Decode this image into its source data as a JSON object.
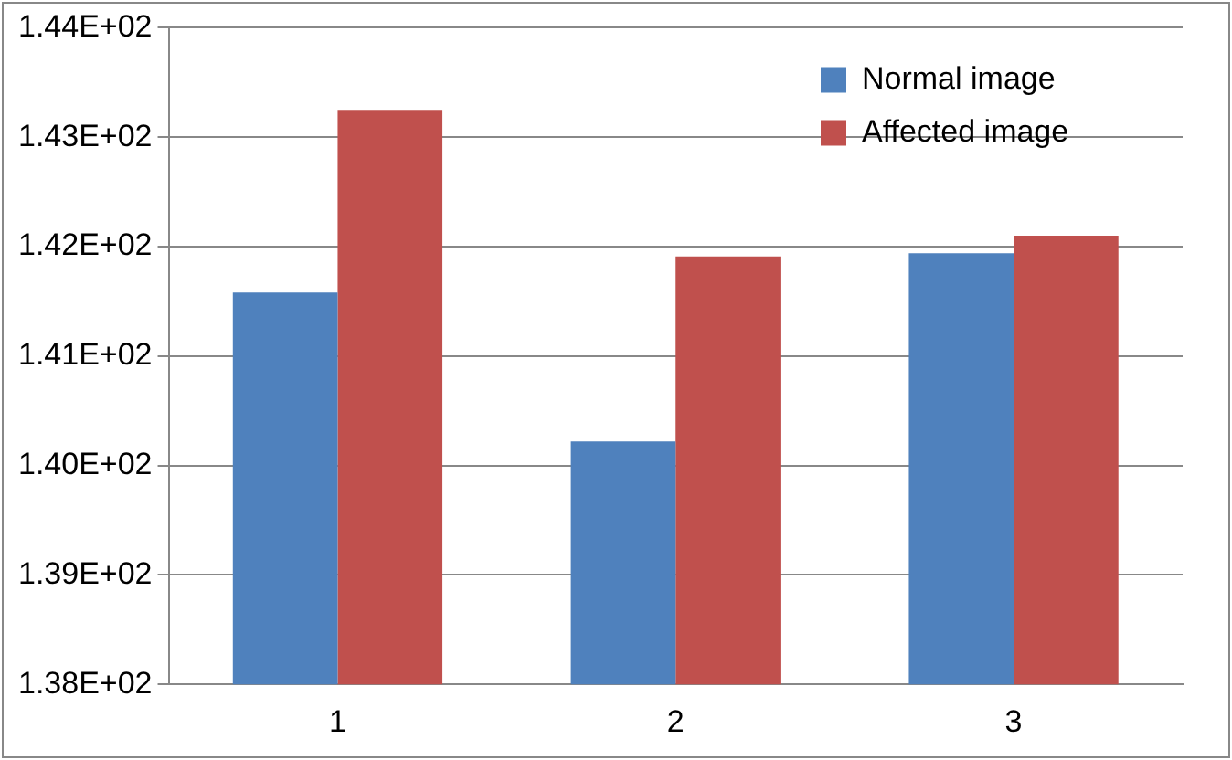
{
  "chart_data": {
    "type": "bar",
    "categories": [
      "1",
      "2",
      "3"
    ],
    "series": [
      {
        "name": "Normal image",
        "color": "#4f81bd",
        "values": [
          141.58,
          140.22,
          141.94
        ]
      },
      {
        "name": "Affected image",
        "color": "#c0504d",
        "values": [
          143.25,
          141.91,
          142.1
        ]
      }
    ],
    "ylim": [
      138,
      144
    ],
    "yticks": [
      {
        "value": 138,
        "label": "1.38E+02"
      },
      {
        "value": 139,
        "label": "1.39E+02"
      },
      {
        "value": 140,
        "label": "1.40E+02"
      },
      {
        "value": 141,
        "label": "1.41E+02"
      },
      {
        "value": 142,
        "label": "1.42E+02"
      },
      {
        "value": 143,
        "label": "1.43E+02"
      },
      {
        "value": 144,
        "label": "1.44E+02"
      }
    ],
    "grid": "y",
    "legend": "top right"
  }
}
